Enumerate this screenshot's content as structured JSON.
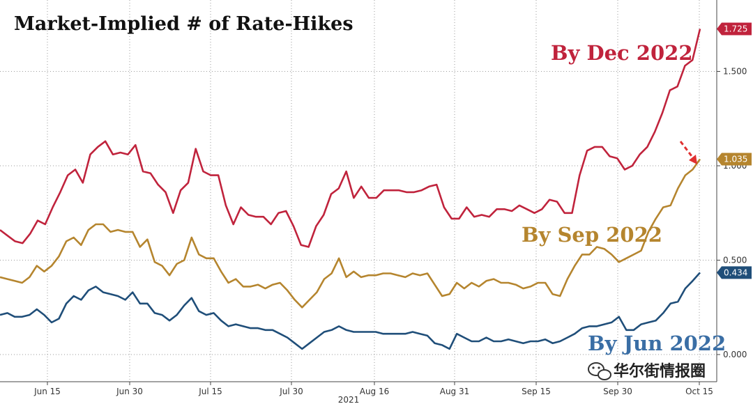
{
  "chart_data": {
    "type": "line",
    "title": "Market-Implied # of Rate-Hikes",
    "x_year_label": "2021",
    "x_ticks": [
      "Jun 15",
      "Jun 30",
      "Jul 15",
      "Jul 30",
      "Aug 16",
      "Aug 31",
      "Sep 15",
      "Sep 30",
      "Oct 15"
    ],
    "y_ticks": [
      "0.000",
      "0.500",
      "1.000",
      "1.500"
    ],
    "ylim": [
      -0.05,
      1.85
    ],
    "grid": true,
    "series": [
      {
        "name": "By Dec 2022",
        "color": "#c0233c",
        "last_value": "1.725",
        "values": [
          0.66,
          0.63,
          0.6,
          0.59,
          0.64,
          0.71,
          0.69,
          0.78,
          0.86,
          0.95,
          0.98,
          0.91,
          1.06,
          1.1,
          1.13,
          1.06,
          1.07,
          1.06,
          1.11,
          0.97,
          0.96,
          0.9,
          0.86,
          0.75,
          0.87,
          0.91,
          1.09,
          0.97,
          0.95,
          0.95,
          0.79,
          0.69,
          0.78,
          0.74,
          0.73,
          0.73,
          0.69,
          0.75,
          0.76,
          0.68,
          0.58,
          0.57,
          0.68,
          0.74,
          0.85,
          0.88,
          0.97,
          0.83,
          0.89,
          0.83,
          0.83,
          0.87,
          0.87,
          0.87,
          0.86,
          0.86,
          0.87,
          0.89,
          0.9,
          0.78,
          0.72,
          0.72,
          0.78,
          0.73,
          0.74,
          0.73,
          0.77,
          0.77,
          0.76,
          0.79,
          0.77,
          0.75,
          0.77,
          0.82,
          0.81,
          0.75,
          0.75,
          0.95,
          1.08,
          1.1,
          1.1,
          1.05,
          1.04,
          0.98,
          1.0,
          1.06,
          1.1,
          1.18,
          1.28,
          1.4,
          1.42,
          1.53,
          1.56,
          1.725
        ]
      },
      {
        "name": "By Sep 2022",
        "color": "#b5852e",
        "last_value": "1.035",
        "values": [
          0.41,
          0.4,
          0.39,
          0.38,
          0.41,
          0.47,
          0.44,
          0.47,
          0.52,
          0.6,
          0.62,
          0.58,
          0.66,
          0.69,
          0.69,
          0.65,
          0.66,
          0.65,
          0.65,
          0.57,
          0.61,
          0.49,
          0.47,
          0.42,
          0.48,
          0.5,
          0.62,
          0.53,
          0.51,
          0.51,
          0.44,
          0.38,
          0.4,
          0.36,
          0.36,
          0.37,
          0.35,
          0.37,
          0.38,
          0.34,
          0.29,
          0.25,
          0.29,
          0.33,
          0.4,
          0.43,
          0.51,
          0.41,
          0.44,
          0.41,
          0.42,
          0.42,
          0.43,
          0.43,
          0.42,
          0.41,
          0.43,
          0.42,
          0.43,
          0.37,
          0.31,
          0.32,
          0.38,
          0.35,
          0.38,
          0.36,
          0.39,
          0.4,
          0.38,
          0.38,
          0.37,
          0.35,
          0.36,
          0.38,
          0.38,
          0.32,
          0.31,
          0.4,
          0.47,
          0.53,
          0.53,
          0.57,
          0.56,
          0.53,
          0.49,
          0.51,
          0.53,
          0.55,
          0.65,
          0.72,
          0.78,
          0.79,
          0.88,
          0.95,
          0.98,
          1.035
        ]
      },
      {
        "name": "By Jun 2022",
        "color": "#1f4e79",
        "last_value": "0.434",
        "values": [
          0.21,
          0.22,
          0.2,
          0.2,
          0.21,
          0.24,
          0.21,
          0.17,
          0.19,
          0.27,
          0.31,
          0.29,
          0.34,
          0.36,
          0.33,
          0.32,
          0.31,
          0.29,
          0.33,
          0.27,
          0.27,
          0.22,
          0.21,
          0.18,
          0.21,
          0.26,
          0.3,
          0.23,
          0.21,
          0.22,
          0.18,
          0.15,
          0.16,
          0.15,
          0.14,
          0.14,
          0.13,
          0.13,
          0.11,
          0.09,
          0.06,
          0.03,
          0.06,
          0.09,
          0.12,
          0.13,
          0.15,
          0.13,
          0.12,
          0.12,
          0.12,
          0.12,
          0.11,
          0.11,
          0.11,
          0.11,
          0.12,
          0.11,
          0.1,
          0.06,
          0.05,
          0.03,
          0.11,
          0.09,
          0.07,
          0.07,
          0.09,
          0.07,
          0.07,
          0.08,
          0.07,
          0.06,
          0.07,
          0.07,
          0.08,
          0.06,
          0.07,
          0.09,
          0.11,
          0.14,
          0.15,
          0.15,
          0.16,
          0.17,
          0.2,
          0.13,
          0.13,
          0.16,
          0.17,
          0.18,
          0.22,
          0.27,
          0.28,
          0.35,
          0.39,
          0.434
        ]
      }
    ],
    "annotations": {
      "arrow_color": "#e03030"
    }
  },
  "watermark": {
    "text": "华尔街情报圈",
    "icon": "wechat-icon"
  }
}
